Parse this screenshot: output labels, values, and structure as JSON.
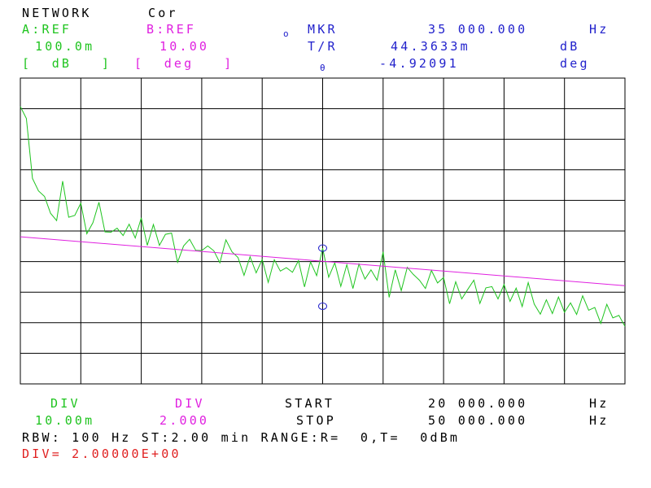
{
  "header": {
    "mode": "NETWORK",
    "cor": "Cor",
    "a_label": "A:REF",
    "b_label": "B:REF",
    "a_ref_value": "100.0m",
    "b_ref_value": "10.00",
    "a_unit": "[  dB   ]",
    "b_unit": "[  deg   ]",
    "marker_symbol": "o",
    "marker_label": "MKR",
    "marker_freq": "35 000.000",
    "marker_freq_unit": "Hz",
    "tr_label": "T/R",
    "tr_value": "44.3633m",
    "tr_unit": "dB",
    "theta_symbol": "θ",
    "theta_value": "-4.92091",
    "theta_unit": "deg"
  },
  "footer": {
    "div_a_label": "DIV",
    "div_a_value": "10.00m",
    "div_b_label": "DIV",
    "div_b_value": "2.000",
    "start_label": "START",
    "start_value": "20 000.000",
    "start_unit": "Hz",
    "stop_label": "STOP",
    "stop_value": "50 000.000",
    "stop_unit": "Hz",
    "status_line": "RBW: 100 Hz ST:2.00 min RANGE:R=  0,T=  0dBm",
    "div_entry": "DIV= 2.00000E+00"
  },
  "colors": {
    "trace_a": "#1fc41f",
    "trace_b": "#e020e0",
    "marker": "#2222cc",
    "grid": "#000000"
  },
  "chart_data": {
    "type": "line",
    "x_start_hz": 20000,
    "x_stop_hz": 50000,
    "x_divisions": 10,
    "y_divisions": 10,
    "grid": true,
    "series": [
      {
        "name": "A:REF",
        "unit": "dB",
        "ref_value": 0.1,
        "per_div": 0.01,
        "x": [
          20000,
          20300,
          20600,
          20900,
          21200,
          21500,
          21800,
          22100,
          22400,
          22700,
          23000,
          23300,
          23600,
          23900,
          24200,
          24500,
          24800,
          25100,
          25400,
          25700,
          26000,
          26300,
          26600,
          26900,
          27200,
          27500,
          27800,
          28100,
          28400,
          28700,
          29000,
          29300,
          29600,
          29900,
          30200,
          30500,
          30800,
          31100,
          31400,
          31700,
          32000,
          32300,
          32600,
          32900,
          33200,
          33500,
          33800,
          34100,
          34400,
          34700,
          35000,
          35300,
          35600,
          35900,
          36200,
          36500,
          36800,
          37100,
          37400,
          37700,
          38000,
          38300,
          38600,
          38900,
          39200,
          39500,
          39800,
          40100,
          40400,
          40700,
          41000,
          41300,
          41600,
          41900,
          42200,
          42500,
          42800,
          43100,
          43400,
          43700,
          44000,
          44300,
          44600,
          44900,
          45200,
          45500,
          45800,
          46100,
          46400,
          46700,
          47000,
          47300,
          47600,
          47900,
          48200,
          48500,
          48800,
          49100,
          49400,
          49700,
          50000
        ],
        "values": [
          0.0907,
          0.0868,
          0.0672,
          0.0631,
          0.0613,
          0.0558,
          0.0534,
          0.0663,
          0.0545,
          0.0551,
          0.0591,
          0.0491,
          0.0527,
          0.0594,
          0.0497,
          0.0496,
          0.0509,
          0.0485,
          0.0522,
          0.0477,
          0.0543,
          0.0453,
          0.0521,
          0.0453,
          0.0489,
          0.0493,
          0.0398,
          0.0451,
          0.0473,
          0.0437,
          0.0436,
          0.0451,
          0.0435,
          0.0396,
          0.0471,
          0.0432,
          0.0413,
          0.0355,
          0.0416,
          0.0363,
          0.0407,
          0.0332,
          0.0406,
          0.0369,
          0.038,
          0.0365,
          0.0403,
          0.0317,
          0.0399,
          0.0354,
          0.0444,
          0.0349,
          0.0396,
          0.0319,
          0.039,
          0.0312,
          0.0392,
          0.0343,
          0.0373,
          0.0339,
          0.0432,
          0.0283,
          0.0373,
          0.0305,
          0.0381,
          0.0358,
          0.0339,
          0.0312,
          0.0371,
          0.033,
          0.0348,
          0.0262,
          0.0334,
          0.0278,
          0.0309,
          0.0339,
          0.0263,
          0.0314,
          0.0318,
          0.0278,
          0.0325,
          0.027,
          0.0313,
          0.0253,
          0.0331,
          0.0261,
          0.0228,
          0.0275,
          0.023,
          0.0284,
          0.0234,
          0.0265,
          0.0227,
          0.0288,
          0.0241,
          0.025,
          0.0198,
          0.026,
          0.0216,
          0.0224,
          0.0188
        ]
      },
      {
        "name": "B:REF",
        "unit": "deg",
        "ref_value": 10.0,
        "per_div": 2.0,
        "x": [
          20000,
          50000
        ],
        "values": [
          -0.38,
          -3.58
        ]
      }
    ],
    "marker": {
      "x_hz": 35000,
      "a_value": 0.0444,
      "b_value": -4.92
    }
  }
}
